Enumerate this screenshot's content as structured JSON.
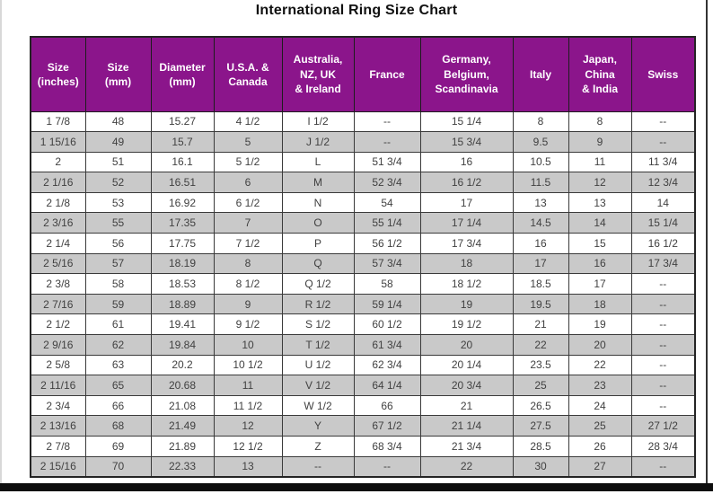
{
  "page": {
    "title": "International Ring Size Chart",
    "colors": {
      "header_bg": "#8B158B",
      "header_text": "#FFFFFF",
      "row_bg": "#FFFFFF",
      "row_alt_bg": "#C9C9C9",
      "grid_border": "#3A3A3A",
      "cell_text": "#414141",
      "bottom_bar": "#0D0D0D"
    }
  },
  "chart_data": {
    "type": "table",
    "title": "International Ring Size Chart",
    "columns": [
      "Size (inches)",
      "Size (mm)",
      "Diameter (mm)",
      "U.S.A. & Canada",
      "Australia, NZ, UK & Ireland",
      "France",
      "Germany, Belgium, Scandinavia",
      "Italy",
      "Japan, China & India",
      "Swiss"
    ],
    "columns_display": [
      "Size\n(inches)",
      "Size\n(mm)",
      "Diameter\n(mm)",
      "U.S.A. &\nCanada",
      "Australia,\nNZ, UK\n& Ireland",
      "France",
      "Germany,\nBelgium,\nScandinavia",
      "Italy",
      "Japan,\nChina\n& India",
      "Swiss"
    ],
    "rows": [
      [
        "1  7/8",
        "48",
        "15.27",
        "4 1/2",
        "I 1/2",
        "--",
        "15 1/4",
        "8",
        "8",
        "--"
      ],
      [
        "1 15/16",
        "49",
        "15.7",
        "5",
        "J 1/2",
        "--",
        "15 3/4",
        "9.5",
        "9",
        "--"
      ],
      [
        "2",
        "51",
        "16.1",
        "5 1/2",
        "L",
        "51 3/4",
        "16",
        "10.5",
        "11",
        "11 3/4"
      ],
      [
        "2  1/16",
        "52",
        "16.51",
        "6",
        "M",
        "52 3/4",
        "16 1/2",
        "11.5",
        "12",
        "12 3/4"
      ],
      [
        "2  1/8",
        "53",
        "16.92",
        "6 1/2",
        "N",
        "54",
        "17",
        "13",
        "13",
        "14"
      ],
      [
        "2  3/16",
        "55",
        "17.35",
        "7",
        "O",
        "55 1/4",
        "17 1/4",
        "14.5",
        "14",
        "15 1/4"
      ],
      [
        "2  1/4",
        "56",
        "17.75",
        "7 1/2",
        "P",
        "56 1/2",
        "17 3/4",
        "16",
        "15",
        "16 1/2"
      ],
      [
        "2  5/16",
        "57",
        "18.19",
        "8",
        "Q",
        "57 3/4",
        "18",
        "17",
        "16",
        "17 3/4"
      ],
      [
        "2  3/8",
        "58",
        "18.53",
        "8 1/2",
        "Q 1/2",
        "58",
        "18 1/2",
        "18.5",
        "17",
        "--"
      ],
      [
        "2  7/16",
        "59",
        "18.89",
        "9",
        "R 1/2",
        "59 1/4",
        "19",
        "19.5",
        "18",
        "--"
      ],
      [
        "2  1/2",
        "61",
        "19.41",
        "9 1/2",
        "S 1/2",
        "60 1/2",
        "19 1/2",
        "21",
        "19",
        "--"
      ],
      [
        "2  9/16",
        "62",
        "19.84",
        "10",
        "T 1/2",
        "61 3/4",
        "20",
        "22",
        "20",
        "--"
      ],
      [
        "2  5/8",
        "63",
        "20.2",
        "10 1/2",
        "U 1/2",
        "62 3/4",
        "20 1/4",
        "23.5",
        "22",
        "--"
      ],
      [
        "2 11/16",
        "65",
        "20.68",
        "11",
        "V 1/2",
        "64 1/4",
        "20 3/4",
        "25",
        "23",
        "--"
      ],
      [
        "2  3/4",
        "66",
        "21.08",
        "11 1/2",
        "W 1/2",
        "66",
        "21",
        "26.5",
        "24",
        "--"
      ],
      [
        "2 13/16",
        "68",
        "21.49",
        "12",
        "Y",
        "67 1/2",
        "21 1/4",
        "27.5",
        "25",
        "27 1/2"
      ],
      [
        "2  7/8",
        "69",
        "21.89",
        "12 1/2",
        "Z",
        "68 3/4",
        "21 3/4",
        "28.5",
        "26",
        "28 3/4"
      ],
      [
        "2 15/16",
        "70",
        "22.33",
        "13",
        "--",
        "--",
        "22",
        "30",
        "27",
        "--"
      ]
    ]
  }
}
